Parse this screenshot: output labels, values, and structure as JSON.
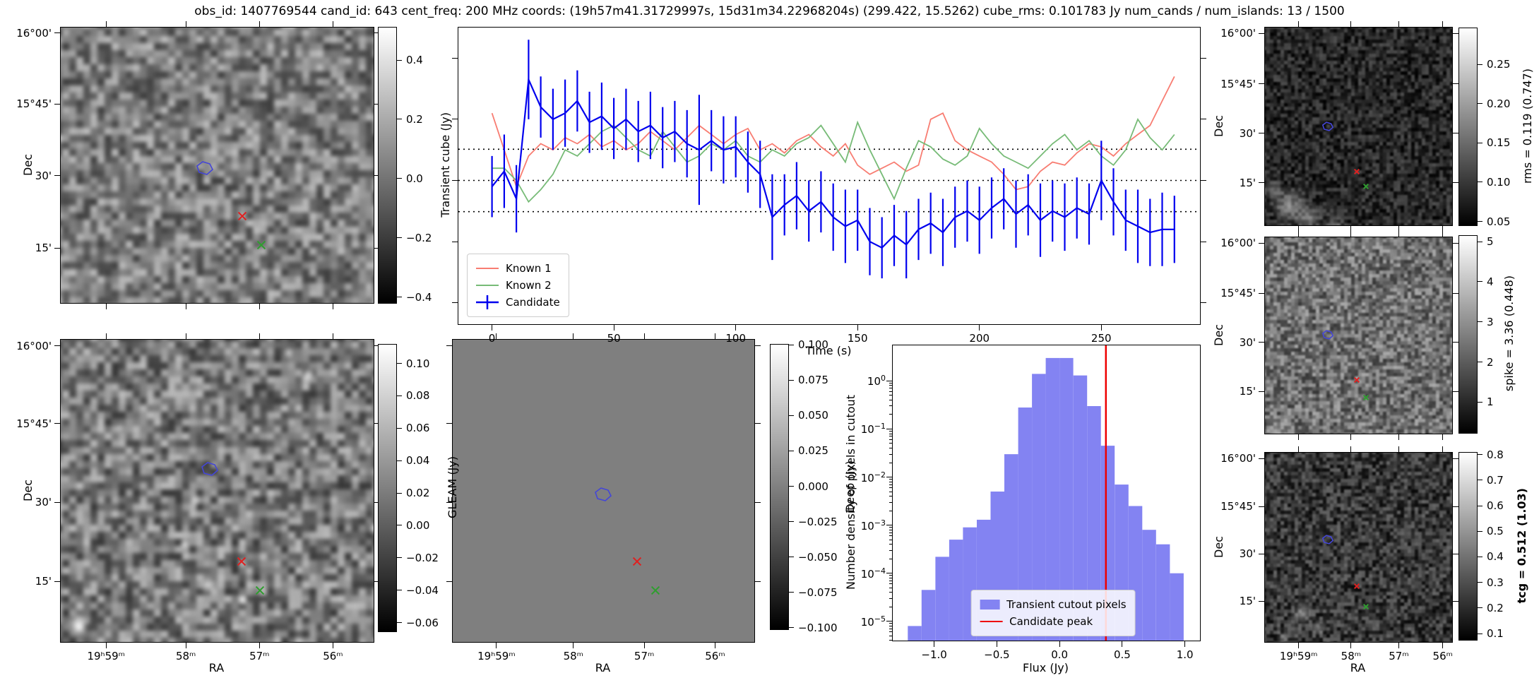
{
  "title": "obs_id: 1407769544 cand_id: 643 cent_freq: 200 MHz coords: (19h57m41.31729997s, 15d31m34.22968204s) (299.422, 15.5262) cube_rms: 0.101783 Jy num_cands / num_islands: 13 / 1500",
  "axes": {
    "dec_label": "Dec",
    "ra_label": "RA",
    "dec_ticks": [
      "16°00'",
      "15°45'",
      "30'",
      "15'"
    ],
    "ra_ticks": [
      "19ʰ59ᵐ",
      "58ᵐ",
      "57ᵐ",
      "56ᵐ"
    ]
  },
  "marker_colors": {
    "candidate": "#4446d7",
    "known1": "#e02020",
    "known2": "#2f9e2f"
  },
  "panels": {
    "transient": {
      "markers": {
        "candidate": [
          0.46,
          0.51
        ],
        "known1": [
          0.58,
          0.685
        ],
        "known2": [
          0.64,
          0.79
        ]
      }
    },
    "gleam": {
      "markers": {
        "candidate": [
          0.476,
          0.428
        ],
        "known1": [
          0.578,
          0.734
        ],
        "known2": [
          0.637,
          0.83
        ]
      }
    },
    "deep": {
      "markers": {
        "candidate": [
          0.499,
          0.512
        ],
        "known1": [
          0.611,
          0.734
        ],
        "known2": [
          0.672,
          0.83
        ]
      }
    },
    "rms": {
      "markers": {
        "candidate": [
          0.336,
          0.5
        ],
        "known1": [
          0.49,
          0.729
        ],
        "known2": [
          0.54,
          0.804
        ]
      }
    },
    "spike": {
      "markers": {
        "candidate": [
          0.336,
          0.496
        ],
        "known1": [
          0.49,
          0.727
        ],
        "known2": [
          0.54,
          0.817
        ]
      }
    },
    "tcg": {
      "markers": {
        "candidate": [
          0.336,
          0.459
        ],
        "known1": [
          0.49,
          0.705
        ],
        "known2": [
          0.54,
          0.813
        ]
      }
    }
  },
  "colorbars": {
    "transient": {
      "label": "Transient cube (Jy)",
      "vmin": -0.417,
      "vmax": 0.512,
      "tick_values": [
        0.4,
        0.2,
        0.0,
        -0.2,
        -0.4
      ],
      "ticks": [
        "0.4",
        "0.2",
        "0.0",
        "−0.2",
        "−0.4"
      ]
    },
    "gleam": {
      "label": "GLEAM (Jy)",
      "vmin": -0.065,
      "vmax": 0.112,
      "tick_values": [
        0.1,
        0.08,
        0.06,
        0.04,
        0.02,
        0.0,
        -0.02,
        -0.04,
        -0.06
      ],
      "ticks": [
        "0.10",
        "0.08",
        "0.06",
        "0.04",
        "0.02",
        "0.00",
        "−0.02",
        "−0.04",
        "−0.06"
      ]
    },
    "deep": {
      "label": "Deep (Jy)",
      "vmin": -0.1005,
      "vmax": 0.1005,
      "tick_values": [
        0.1,
        0.075,
        0.05,
        0.025,
        0.0,
        -0.025,
        -0.05,
        -0.075,
        -0.1
      ],
      "ticks": [
        "0.100",
        "0.075",
        "0.050",
        "0.025",
        "0.000",
        "−0.025",
        "−0.050",
        "−0.075",
        "−0.100"
      ]
    },
    "rms": {
      "label": "rms = 0.119 (0.747)",
      "vmin": 0.046,
      "vmax": 0.297,
      "tick_values": [
        0.25,
        0.2,
        0.15,
        0.1,
        0.05
      ],
      "ticks": [
        "0.25",
        "0.20",
        "0.15",
        "0.10",
        "0.05"
      ]
    },
    "spike": {
      "label": "spike = 3.36 (0.448)",
      "vmin": 0.25,
      "vmax": 5.16,
      "tick_values": [
        5,
        4,
        3,
        2,
        1
      ],
      "ticks": [
        "5",
        "4",
        "3",
        "2",
        "1"
      ]
    },
    "tcg": {
      "label": "tcg = 0.512 (1.03)",
      "bold": true,
      "vmin": 0.078,
      "vmax": 0.81,
      "tick_values": [
        0.8,
        0.7,
        0.6,
        0.5,
        0.4,
        0.3,
        0.2,
        0.1
      ],
      "ticks": [
        "0.8",
        "0.7",
        "0.6",
        "0.5",
        "0.4",
        "0.3",
        "0.2",
        "0.1"
      ]
    }
  },
  "chart_data": [
    {
      "type": "line",
      "title": "",
      "xlabel": "Time (s)",
      "ylabel": "",
      "xlim": [
        -13.8,
        290.5
      ],
      "ylim": [
        -0.47,
        0.5
      ],
      "x_ticks": [
        0,
        50,
        100,
        150,
        200,
        250
      ],
      "x_tick_labels": [
        "0",
        "50",
        "100",
        "150",
        "200",
        "250"
      ],
      "y_ticks": [
        0.4,
        0.2,
        0.0,
        -0.2,
        -0.4
      ],
      "dotted_hlines": [
        0.102,
        0.0,
        -0.102
      ],
      "legend_position": "lower left",
      "x": [
        0,
        5,
        10,
        15,
        20,
        25,
        30,
        35,
        40,
        45,
        50,
        55,
        60,
        65,
        70,
        75,
        80,
        85,
        90,
        95,
        100,
        105,
        110,
        115,
        120,
        125,
        130,
        135,
        140,
        145,
        150,
        155,
        160,
        165,
        170,
        175,
        180,
        185,
        190,
        195,
        200,
        205,
        210,
        215,
        220,
        225,
        230,
        235,
        240,
        245,
        250,
        255,
        260,
        265,
        270,
        275,
        280
      ],
      "series": [
        {
          "name": "Known 1",
          "color": "#f87d72",
          "y": [
            0.22,
            0.1,
            -0.02,
            0.08,
            0.12,
            0.1,
            0.14,
            0.12,
            0.15,
            0.11,
            0.13,
            0.1,
            0.12,
            0.16,
            0.13,
            0.1,
            0.14,
            0.18,
            0.15,
            0.12,
            0.15,
            0.17,
            0.1,
            0.12,
            0.09,
            0.13,
            0.15,
            0.11,
            0.08,
            0.12,
            0.05,
            0.02,
            0.04,
            0.06,
            0.03,
            0.05,
            0.2,
            0.22,
            0.13,
            0.1,
            0.08,
            0.06,
            0.02,
            -0.03,
            -0.02,
            0.03,
            0.06,
            0.05,
            0.09,
            0.12,
            0.11,
            0.08,
            0.12,
            0.15,
            0.18,
            0.26,
            0.34
          ]
        },
        {
          "name": "Known 2",
          "color": "#77bb77",
          "y": [
            0.04,
            0.04,
            0.0,
            -0.07,
            -0.03,
            0.02,
            0.1,
            0.08,
            0.12,
            0.16,
            0.18,
            0.14,
            0.1,
            0.08,
            0.16,
            0.11,
            0.06,
            0.08,
            0.12,
            0.1,
            0.13,
            0.08,
            0.06,
            0.1,
            0.08,
            0.12,
            0.14,
            0.18,
            0.12,
            0.06,
            0.19,
            0.1,
            0.02,
            -0.06,
            0.04,
            0.13,
            0.11,
            0.07,
            0.05,
            0.08,
            0.17,
            0.12,
            0.08,
            0.06,
            0.04,
            0.08,
            0.12,
            0.15,
            0.1,
            0.13,
            0.08,
            0.05,
            0.1,
            0.2,
            0.14,
            0.1,
            0.15
          ]
        },
        {
          "name": "Candidate",
          "color": "#0000ee",
          "y": [
            -0.02,
            0.03,
            -0.06,
            0.33,
            0.24,
            0.2,
            0.22,
            0.26,
            0.19,
            0.21,
            0.17,
            0.2,
            0.16,
            0.18,
            0.14,
            0.16,
            0.12,
            0.1,
            0.13,
            0.1,
            0.11,
            0.06,
            0.02,
            -0.12,
            -0.08,
            -0.05,
            -0.1,
            -0.07,
            -0.12,
            -0.15,
            -0.13,
            -0.2,
            -0.22,
            -0.18,
            -0.21,
            -0.16,
            -0.14,
            -0.17,
            -0.12,
            -0.1,
            -0.13,
            -0.09,
            -0.06,
            -0.11,
            -0.08,
            -0.13,
            -0.1,
            -0.12,
            -0.09,
            -0.11,
            0.0,
            -0.07,
            -0.13,
            -0.15,
            -0.17,
            -0.16,
            -0.16
          ],
          "yerr": [
            0.1,
            0.12,
            0.11,
            0.13,
            0.1,
            0.1,
            0.11,
            0.1,
            0.1,
            0.11,
            0.1,
            0.1,
            0.1,
            0.11,
            0.1,
            0.1,
            0.11,
            0.18,
            0.1,
            0.11,
            0.1,
            0.1,
            0.11,
            0.14,
            0.1,
            0.11,
            0.1,
            0.1,
            0.11,
            0.12,
            0.1,
            0.11,
            0.1,
            0.1,
            0.11,
            0.1,
            0.1,
            0.11,
            0.1,
            0.1,
            0.11,
            0.1,
            0.1,
            0.11,
            0.1,
            0.12,
            0.1,
            0.11,
            0.1,
            0.1,
            0.13,
            0.11,
            0.1,
            0.12,
            0.11,
            0.12,
            0.11
          ]
        }
      ]
    },
    {
      "type": "bar",
      "title": "",
      "xlabel": "Flux (Jy)",
      "ylabel": "Number density of pixels in cutout",
      "yscale": "log",
      "xlim": [
        -1.33,
        1.12
      ],
      "ylim_log10": [
        -5.4,
        0.74
      ],
      "x_ticks": [
        -1.0,
        -0.5,
        0.0,
        0.5,
        1.0
      ],
      "x_tick_labels": [
        "−1.0",
        "−0.5",
        "0.0",
        "0.5",
        "1.0"
      ],
      "y_tick_exponents": [
        0,
        -1,
        -2,
        -3,
        -4,
        -5
      ],
      "bar_color": "#8383f2",
      "bin_edges": [
        -1.21,
        -1.1,
        -0.99,
        -0.88,
        -0.77,
        -0.66,
        -0.55,
        -0.44,
        -0.33,
        -0.22,
        -0.11,
        0.0,
        0.11,
        0.22,
        0.33,
        0.44,
        0.55,
        0.66,
        0.77,
        0.88,
        0.99
      ],
      "values": [
        8e-06,
        4.5e-05,
        0.00022,
        0.0005,
        0.0009,
        0.0013,
        0.005,
        0.03,
        0.28,
        1.4,
        3.0,
        3.0,
        1.3,
        0.3,
        0.045,
        0.007,
        0.0025,
        0.0008,
        0.0004,
        0.0001
      ],
      "vline": {
        "x": 0.37,
        "color": "#ee0000",
        "label": "Candidate peak"
      },
      "legend": [
        "Transient cutout pixels",
        "Candidate peak"
      ],
      "legend_position": "lower center"
    }
  ]
}
